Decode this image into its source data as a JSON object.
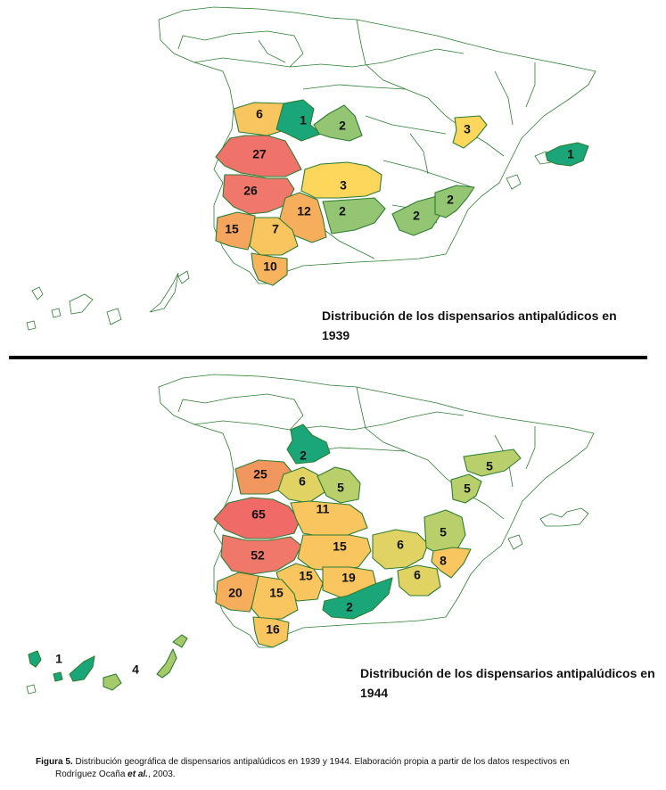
{
  "colors": {
    "c1": "#1aa679",
    "c2": "#93c572",
    "c3": "#fcd75c",
    "c4": "#a6c96a",
    "c5": "#b9cf6b",
    "c6": "#e1d264",
    "c7": "#f9c55f",
    "c10": "#f7b45c",
    "c12": "#f7ae5c",
    "c15": "#f6a55e",
    "c20": "#f59a60",
    "c25": "#f29660",
    "c26": "#f0776c",
    "c27": "#f0736b",
    "c52": "#f0786b",
    "c65": "#f06a68",
    "border": "#2e7d32",
    "background": "#ffffff"
  },
  "map_1939": {
    "title": "Distribución de los dispensarios antipalúdicos en 1939",
    "regions": [
      {
        "label": "6",
        "value": 6
      },
      {
        "label": "1",
        "value": 1
      },
      {
        "label": "2",
        "value": 2
      },
      {
        "label": "3",
        "value": 3
      },
      {
        "label": "1",
        "value": 1
      },
      {
        "label": "27",
        "value": 27
      },
      {
        "label": "26",
        "value": 26
      },
      {
        "label": "3",
        "value": 3
      },
      {
        "label": "12",
        "value": 12
      },
      {
        "label": "2",
        "value": 2
      },
      {
        "label": "2",
        "value": 2
      },
      {
        "label": "2",
        "value": 2
      },
      {
        "label": "15",
        "value": 15
      },
      {
        "label": "7",
        "value": 7
      },
      {
        "label": "10",
        "value": 10
      }
    ]
  },
  "map_1944": {
    "title": "Distribución de los dispensarios antipalúdicos en 1944",
    "regions": [
      {
        "label": "2",
        "value": 2
      },
      {
        "label": "25",
        "value": 25
      },
      {
        "label": "6",
        "value": 6
      },
      {
        "label": "5",
        "value": 5
      },
      {
        "label": "5",
        "value": 5
      },
      {
        "label": "5",
        "value": 5
      },
      {
        "label": "65",
        "value": 65
      },
      {
        "label": "11",
        "value": 11
      },
      {
        "label": "52",
        "value": 52
      },
      {
        "label": "15",
        "value": 15
      },
      {
        "label": "6",
        "value": 6
      },
      {
        "label": "5",
        "value": 5
      },
      {
        "label": "8",
        "value": 8
      },
      {
        "label": "15",
        "value": 15
      },
      {
        "label": "19",
        "value": 19
      },
      {
        "label": "6",
        "value": 6
      },
      {
        "label": "20",
        "value": 20
      },
      {
        "label": "15",
        "value": 15
      },
      {
        "label": "2",
        "value": 2
      },
      {
        "label": "16",
        "value": 16
      },
      {
        "label": "1",
        "value": 1
      },
      {
        "label": "4",
        "value": 4
      }
    ]
  },
  "caption": {
    "figure_label": "Figura 5.",
    "text": "Distribución geográfica de dispensarios antipalúdicos en 1939 y 1944. Elaboración propia a partir de los datos respectivos en",
    "line2_prefix": "Rodríguez Ocaña ",
    "line2_italic": "et al.",
    "line2_suffix": ", 2003."
  }
}
